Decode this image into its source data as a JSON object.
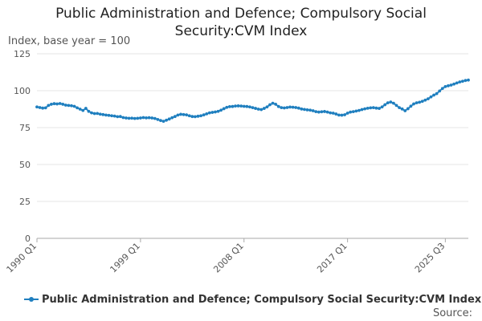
{
  "chart_data": {
    "type": "line",
    "title_lines": [
      "Public Administration and Defence; Compulsory Social",
      "Security:CVM Index"
    ],
    "ylabel": "Index, base year = 100",
    "xlabel": "",
    "ylim": [
      0,
      125
    ],
    "yticks": [
      0,
      25,
      50,
      75,
      100,
      125
    ],
    "xticks": [
      "1990 Q1",
      "1999 Q1",
      "2008 Q1",
      "2017 Q1",
      "2025 Q3"
    ],
    "grid": true,
    "legend_position": "bottom",
    "line_color": "#1f7fbf",
    "source_label": "Source:",
    "series": [
      {
        "name": "Public Administration and Defence; Compulsory Social Security:CVM Index",
        "x_start": "1990 Q1",
        "frequency": "quarterly",
        "values": [
          89.0,
          88.6,
          88.2,
          88.4,
          90.0,
          90.8,
          91.2,
          91.0,
          91.3,
          90.8,
          90.2,
          90.0,
          89.8,
          89.4,
          88.4,
          87.5,
          86.6,
          88.0,
          86.0,
          85.0,
          84.5,
          84.6,
          84.1,
          83.8,
          83.5,
          83.3,
          83.0,
          82.8,
          82.4,
          82.5,
          81.8,
          81.5,
          81.3,
          81.4,
          81.2,
          81.3,
          81.5,
          81.8,
          81.6,
          81.7,
          81.5,
          81.2,
          80.5,
          79.8,
          79.3,
          80.0,
          80.8,
          81.7,
          82.5,
          83.5,
          84.0,
          83.8,
          83.6,
          83.0,
          82.5,
          82.4,
          82.7,
          83.0,
          83.6,
          84.3,
          85.0,
          85.3,
          85.6,
          86.0,
          86.8,
          87.8,
          88.7,
          89.2,
          89.3,
          89.6,
          89.7,
          89.6,
          89.4,
          89.3,
          89.0,
          88.5,
          88.0,
          87.5,
          87.2,
          88.0,
          89.0,
          90.5,
          91.5,
          90.8,
          89.3,
          88.5,
          88.3,
          88.6,
          88.9,
          88.8,
          88.6,
          88.2,
          87.6,
          87.3,
          87.0,
          86.8,
          86.4,
          85.8,
          85.5,
          85.7,
          85.9,
          85.5,
          85.0,
          84.8,
          84.2,
          83.5,
          83.4,
          83.7,
          84.8,
          85.5,
          85.8,
          86.2,
          86.6,
          87.2,
          87.7,
          88.1,
          88.4,
          88.5,
          88.2,
          88.0,
          89.0,
          90.5,
          91.8,
          92.3,
          91.5,
          90.0,
          88.5,
          87.6,
          86.4,
          87.8,
          89.5,
          91.0,
          91.8,
          92.2,
          92.8,
          93.6,
          94.5,
          95.8,
          97.0,
          98.0,
          99.8,
          101.5,
          102.8,
          103.3,
          103.8,
          104.5,
          105.2,
          105.9,
          106.4,
          106.9,
          107.2
        ]
      }
    ]
  }
}
